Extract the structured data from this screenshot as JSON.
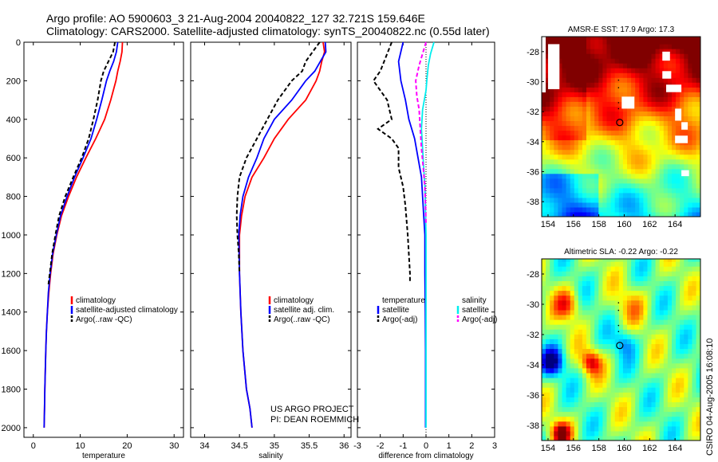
{
  "header": {
    "line1": "Argo profile: AO 5900603_3 21-Aug-2004 20040822_127 32.721S 159.646E",
    "line2": "Climatology: CARS2000. Satellite-adjusted climatology: synTS_20040822.nc (0.55d later)"
  },
  "project": {
    "line1": "US ARGO PROJECT",
    "line2": "PI: DEAN ROEMMICH"
  },
  "credit": "CSIRO 04-Aug-2005 16:08:10",
  "colors": {
    "climatology": "#ff0000",
    "satellite": "#0000ff",
    "argo": "#000000",
    "sal_satellite": "#00eeee",
    "sal_argo": "#ff00ff"
  },
  "chart_data": [
    {
      "type": "line",
      "id": "temperature",
      "xlabel": "temperature",
      "ylabel": "",
      "xlim": [
        -2,
        32
      ],
      "ylim": [
        2050,
        0
      ],
      "xticks": [
        0,
        10,
        20,
        30
      ],
      "yticks": [
        0,
        200,
        400,
        600,
        800,
        1000,
        1200,
        1400,
        1600,
        1800,
        2000
      ],
      "legend": [
        "climatology",
        "satellite-adjusted climatology",
        "Argo(..raw -QC)"
      ],
      "series": [
        {
          "name": "climatology",
          "color": "#ff0000",
          "dash": "",
          "points": [
            [
              19.0,
              0
            ],
            [
              18.9,
              50
            ],
            [
              18.5,
              100
            ],
            [
              18.0,
              150
            ],
            [
              17.6,
              200
            ],
            [
              16.5,
              300
            ],
            [
              15.2,
              400
            ],
            [
              13.3,
              500
            ],
            [
              11.2,
              600
            ],
            [
              9.2,
              700
            ],
            [
              7.5,
              800
            ],
            [
              6.0,
              900
            ],
            [
              5.0,
              1000
            ],
            [
              4.2,
              1100
            ],
            [
              3.7,
              1200
            ],
            [
              3.3,
              1300
            ],
            [
              3.0,
              1400
            ],
            [
              2.8,
              1500
            ],
            [
              2.65,
              1600
            ],
            [
              2.55,
              1700
            ],
            [
              2.45,
              1800
            ],
            [
              2.38,
              1900
            ],
            [
              2.3,
              2000
            ]
          ]
        },
        {
          "name": "satellite-adjusted climatology",
          "color": "#0000ff",
          "dash": "",
          "points": [
            [
              18.0,
              0
            ],
            [
              17.7,
              50
            ],
            [
              17.1,
              100
            ],
            [
              16.3,
              150
            ],
            [
              15.6,
              200
            ],
            [
              14.6,
              300
            ],
            [
              13.5,
              400
            ],
            [
              12.3,
              500
            ],
            [
              10.6,
              600
            ],
            [
              8.8,
              700
            ],
            [
              7.2,
              800
            ],
            [
              5.8,
              900
            ],
            [
              4.9,
              1000
            ],
            [
              4.1,
              1100
            ],
            [
              3.6,
              1200
            ],
            [
              3.2,
              1300
            ],
            [
              3.0,
              1400
            ],
            [
              2.8,
              1500
            ],
            [
              2.65,
              1600
            ],
            [
              2.55,
              1700
            ],
            [
              2.45,
              1800
            ],
            [
              2.38,
              1900
            ],
            [
              2.3,
              2000
            ]
          ]
        },
        {
          "name": "Argo(..raw -QC)",
          "color": "#000000",
          "dash": "5,3",
          "points": [
            [
              17.4,
              0
            ],
            [
              17.0,
              50
            ],
            [
              16.0,
              100
            ],
            [
              15.0,
              150
            ],
            [
              14.4,
              200
            ],
            [
              13.7,
              300
            ],
            [
              12.8,
              400
            ],
            [
              11.8,
              500
            ],
            [
              10.3,
              600
            ],
            [
              8.5,
              700
            ],
            [
              6.8,
              800
            ],
            [
              5.5,
              900
            ],
            [
              4.7,
              1000
            ],
            [
              4.0,
              1100
            ],
            [
              3.5,
              1200
            ],
            [
              3.2,
              1260
            ]
          ]
        }
      ]
    },
    {
      "type": "line",
      "id": "salinity",
      "xlabel": "salinity",
      "ylabel": "",
      "xlim": [
        33.8,
        36.1
      ],
      "ylim": [
        2050,
        0
      ],
      "xticks": [
        34,
        34.5,
        35,
        35.5,
        36
      ],
      "yticks": [
        0,
        200,
        400,
        600,
        800,
        1000,
        1200,
        1400,
        1600,
        1800,
        2000
      ],
      "legend": [
        "climatology",
        "satellite adj. clim.",
        "Argo(..raw -QC)"
      ],
      "series": [
        {
          "name": "climatology",
          "color": "#ff0000",
          "dash": "",
          "points": [
            [
              35.7,
              0
            ],
            [
              35.72,
              50
            ],
            [
              35.68,
              100
            ],
            [
              35.65,
              150
            ],
            [
              35.6,
              200
            ],
            [
              35.45,
              300
            ],
            [
              35.2,
              400
            ],
            [
              35.0,
              500
            ],
            [
              34.85,
              600
            ],
            [
              34.68,
              700
            ],
            [
              34.58,
              800
            ],
            [
              34.53,
              900
            ],
            [
              34.5,
              1000
            ],
            [
              34.5,
              1200
            ],
            [
              34.52,
              1400
            ],
            [
              34.55,
              1600
            ],
            [
              34.6,
              1800
            ],
            [
              34.65,
              1900
            ],
            [
              34.68,
              2000
            ]
          ]
        },
        {
          "name": "satellite adj. clim.",
          "color": "#0000ff",
          "dash": "",
          "points": [
            [
              35.73,
              0
            ],
            [
              35.74,
              50
            ],
            [
              35.66,
              100
            ],
            [
              35.58,
              150
            ],
            [
              35.45,
              200
            ],
            [
              35.25,
              300
            ],
            [
              35.0,
              400
            ],
            [
              34.85,
              500
            ],
            [
              34.75,
              600
            ],
            [
              34.63,
              700
            ],
            [
              34.55,
              800
            ],
            [
              34.51,
              900
            ],
            [
              34.49,
              1000
            ],
            [
              34.5,
              1200
            ],
            [
              34.52,
              1400
            ],
            [
              34.55,
              1600
            ],
            [
              34.6,
              1800
            ],
            [
              34.65,
              1900
            ],
            [
              34.68,
              2000
            ]
          ]
        },
        {
          "name": "Argo(..raw -QC)",
          "color": "#000000",
          "dash": "5,3",
          "points": [
            [
              35.65,
              0
            ],
            [
              35.55,
              50
            ],
            [
              35.45,
              100
            ],
            [
              35.4,
              150
            ],
            [
              35.25,
              200
            ],
            [
              35.05,
              300
            ],
            [
              34.9,
              400
            ],
            [
              34.75,
              500
            ],
            [
              34.6,
              600
            ],
            [
              34.5,
              700
            ],
            [
              34.47,
              800
            ],
            [
              34.46,
              900
            ],
            [
              34.47,
              1000
            ],
            [
              34.49,
              1100
            ],
            [
              34.5,
              1200
            ]
          ]
        }
      ]
    },
    {
      "type": "line",
      "id": "difference",
      "xlabel": "difference from climatology",
      "ylabel": "",
      "xlim": [
        -3,
        3
      ],
      "ylim": [
        2050,
        0
      ],
      "xticks": [
        -3,
        -2,
        -1,
        0,
        1,
        2,
        3
      ],
      "yticks": [
        0,
        200,
        400,
        600,
        800,
        1000,
        1200,
        1400,
        1600,
        1800,
        2000
      ],
      "legend_left": [
        "temperature",
        "satellite",
        "Argo(-adj)"
      ],
      "legend_right": [
        "salinity",
        "satellite",
        "Argo(-adj)"
      ],
      "series": [
        {
          "name": "temperature satellite",
          "color": "#0000ff",
          "dash": "",
          "points": [
            [
              -1.0,
              0
            ],
            [
              -1.2,
              100
            ],
            [
              -1.1,
              200
            ],
            [
              -0.9,
              300
            ],
            [
              -0.75,
              400
            ],
            [
              -0.5,
              500
            ],
            [
              -0.35,
              600
            ],
            [
              -0.2,
              700
            ],
            [
              -0.15,
              800
            ],
            [
              -0.1,
              900
            ],
            [
              -0.05,
              1000
            ],
            [
              -0.05,
              1200
            ],
            [
              -0.03,
              1400
            ],
            [
              -0.02,
              1600
            ],
            [
              -0.02,
              1800
            ],
            [
              -0.02,
              2000
            ]
          ]
        },
        {
          "name": "temperature Argo(-adj)",
          "color": "#000000",
          "dash": "5,3",
          "points": [
            [
              -1.5,
              0
            ],
            [
              -2.0,
              150
            ],
            [
              -2.3,
              200
            ],
            [
              -1.7,
              300
            ],
            [
              -1.5,
              400
            ],
            [
              -2.1,
              450
            ],
            [
              -1.5,
              500
            ],
            [
              -1.2,
              550
            ],
            [
              -1.2,
              650
            ],
            [
              -1.0,
              750
            ],
            [
              -0.9,
              850
            ],
            [
              -0.8,
              1000
            ],
            [
              -0.75,
              1100
            ],
            [
              -0.7,
              1200
            ],
            [
              -0.7,
              1250
            ]
          ]
        },
        {
          "name": "salinity satellite",
          "color": "#00eeee",
          "dash": "",
          "points": [
            [
              0.35,
              0
            ],
            [
              0.2,
              60
            ],
            [
              0.1,
              120
            ],
            [
              0.05,
              180
            ],
            [
              0.0,
              250
            ],
            [
              -0.15,
              350
            ],
            [
              -0.2,
              450
            ],
            [
              -0.15,
              550
            ],
            [
              -0.1,
              650
            ],
            [
              -0.05,
              750
            ],
            [
              -0.02,
              900
            ],
            [
              0.0,
              1000
            ],
            [
              0.0,
              1200
            ],
            [
              0.0,
              1400
            ],
            [
              0.0,
              1600
            ],
            [
              0.0,
              1800
            ],
            [
              0.0,
              2000
            ]
          ]
        },
        {
          "name": "salinity Argo(-adj)",
          "color": "#ff00ff",
          "dash": "5,3",
          "points": [
            [
              0.0,
              0
            ],
            [
              -0.15,
              60
            ],
            [
              -0.3,
              120
            ],
            [
              -0.45,
              200
            ],
            [
              -0.4,
              280
            ],
            [
              -0.3,
              350
            ],
            [
              -0.25,
              450
            ],
            [
              -0.2,
              550
            ],
            [
              -0.12,
              650
            ],
            [
              -0.05,
              750
            ],
            [
              -0.02,
              850
            ],
            [
              0.0,
              950
            ]
          ]
        }
      ]
    },
    {
      "type": "heatmap",
      "id": "sst-map",
      "title": "AMSR-E SST: 17.9 Argo: 17.3",
      "xlim": [
        153.5,
        166
      ],
      "ylim": [
        -39,
        -27
      ],
      "xticks": [
        154,
        156,
        158,
        160,
        162,
        164
      ],
      "yticks": [
        -28,
        -30,
        -32,
        -34,
        -36,
        -38
      ],
      "argo_lon": 159.646,
      "argo_lat": -32.721
    },
    {
      "type": "heatmap",
      "id": "sla-map",
      "title": "Altimetric SLA: -0.22 Argo: -0.22",
      "xlim": [
        153.5,
        166
      ],
      "ylim": [
        -39,
        -27
      ],
      "xticks": [
        154,
        156,
        158,
        160,
        162,
        164
      ],
      "yticks": [
        -28,
        -30,
        -32,
        -34,
        -36,
        -38
      ],
      "argo_lon": 159.646,
      "argo_lat": -32.721
    }
  ]
}
